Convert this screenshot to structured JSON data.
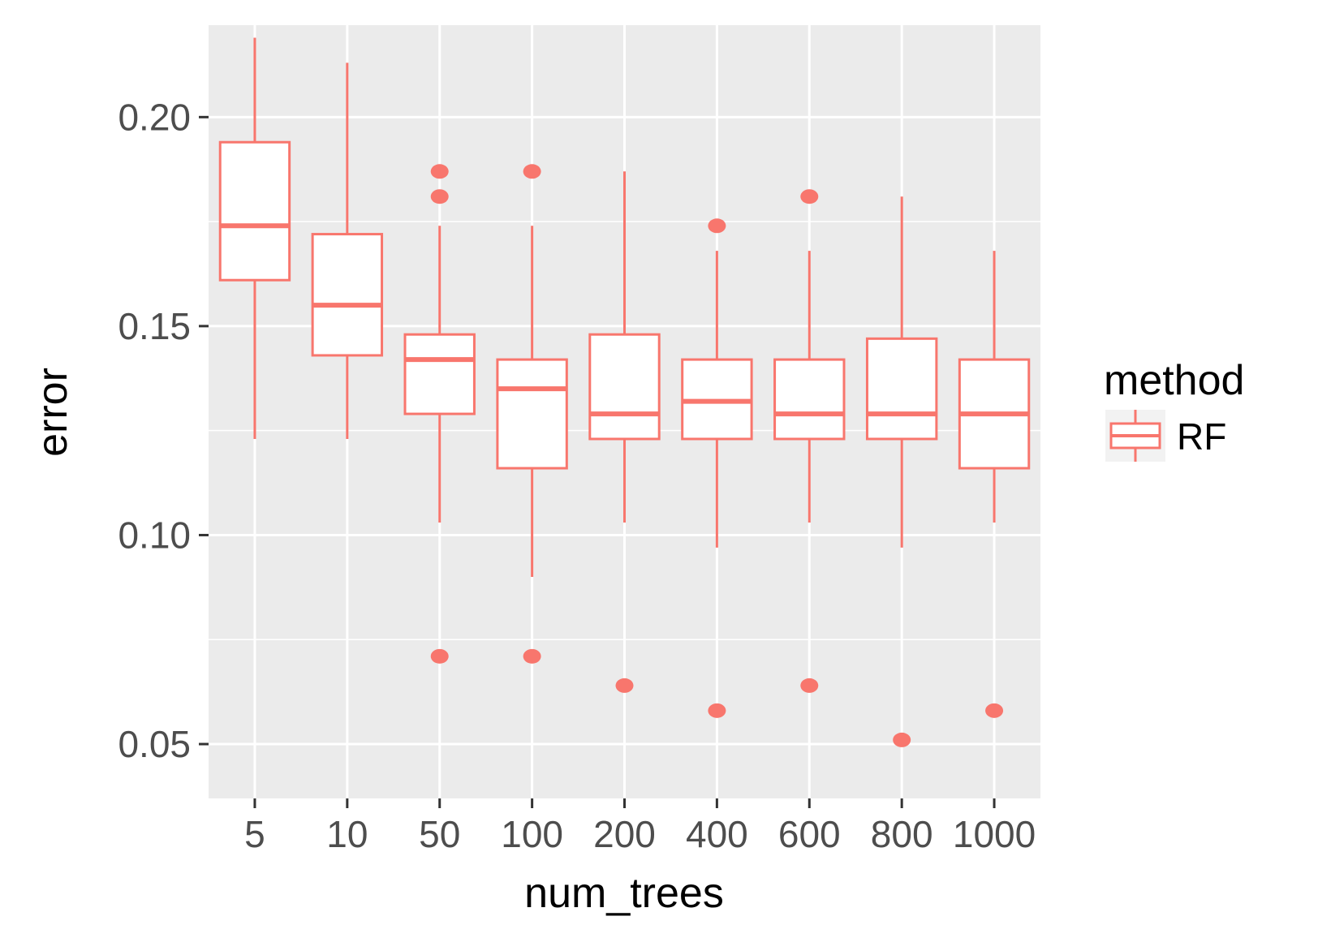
{
  "chart_data": {
    "type": "boxplot",
    "xlabel": "num_trees",
    "ylabel": "error",
    "categories": [
      "5",
      "10",
      "50",
      "100",
      "200",
      "400",
      "600",
      "800",
      "1000"
    ],
    "ylim": [
      0.037,
      0.222
    ],
    "yticks": [
      0.05,
      0.1,
      0.15,
      0.2
    ],
    "ytick_labels": [
      "0.05",
      "0.10",
      "0.15",
      "0.20"
    ],
    "grid": true,
    "legend": {
      "title": "method",
      "position": "right",
      "entries": [
        "RF"
      ]
    },
    "series": [
      {
        "name": "RF",
        "color": "#F8766D",
        "boxes": [
          {
            "category": "5",
            "whisker_low": 0.123,
            "q1": 0.161,
            "median": 0.174,
            "q3": 0.194,
            "whisker_high": 0.219,
            "outliers": []
          },
          {
            "category": "10",
            "whisker_low": 0.123,
            "q1": 0.143,
            "median": 0.155,
            "q3": 0.172,
            "whisker_high": 0.213,
            "outliers": []
          },
          {
            "category": "50",
            "whisker_low": 0.103,
            "q1": 0.129,
            "median": 0.142,
            "q3": 0.148,
            "whisker_high": 0.174,
            "outliers": [
              0.187,
              0.181,
              0.071
            ]
          },
          {
            "category": "100",
            "whisker_low": 0.09,
            "q1": 0.116,
            "median": 0.135,
            "q3": 0.142,
            "whisker_high": 0.174,
            "outliers": [
              0.187,
              0.071
            ]
          },
          {
            "category": "200",
            "whisker_low": 0.103,
            "q1": 0.123,
            "median": 0.129,
            "q3": 0.148,
            "whisker_high": 0.187,
            "outliers": [
              0.064
            ]
          },
          {
            "category": "400",
            "whisker_low": 0.097,
            "q1": 0.123,
            "median": 0.132,
            "q3": 0.142,
            "whisker_high": 0.168,
            "outliers": [
              0.174,
              0.058
            ]
          },
          {
            "category": "600",
            "whisker_low": 0.103,
            "q1": 0.123,
            "median": 0.129,
            "q3": 0.142,
            "whisker_high": 0.168,
            "outliers": [
              0.181,
              0.064
            ]
          },
          {
            "category": "800",
            "whisker_low": 0.097,
            "q1": 0.123,
            "median": 0.129,
            "q3": 0.147,
            "whisker_high": 0.181,
            "outliers": [
              0.051
            ]
          },
          {
            "category": "1000",
            "whisker_low": 0.103,
            "q1": 0.116,
            "median": 0.129,
            "q3": 0.142,
            "whisker_high": 0.168,
            "outliers": [
              0.058
            ]
          }
        ]
      }
    ]
  }
}
